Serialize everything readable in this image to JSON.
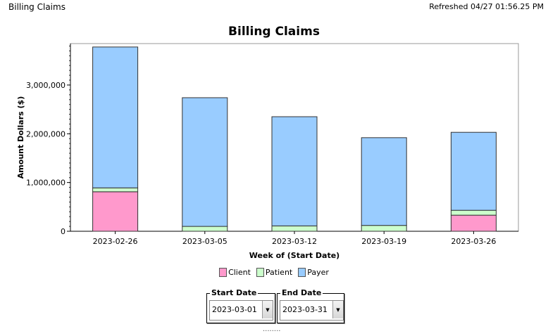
{
  "header": {
    "title": "Billing Claims",
    "refreshed": "Refreshed 04/27 01:56.25 PM"
  },
  "chart_data": {
    "type": "bar",
    "stacked": true,
    "title": "Billing Claims",
    "xlabel": "Week of (Start Date)",
    "ylabel": "Amount Dollars ($)",
    "categories": [
      "2023-02-26",
      "2023-03-05",
      "2023-03-12",
      "2023-03-19",
      "2023-03-26"
    ],
    "series": [
      {
        "name": "Client",
        "color": "#ff99cc",
        "values": [
          810000,
          0,
          0,
          0,
          330000
        ]
      },
      {
        "name": "Patient",
        "color": "#ccffcc",
        "values": [
          80000,
          100000,
          110000,
          120000,
          100000
        ]
      },
      {
        "name": "Payer",
        "color": "#99ccff",
        "values": [
          2890000,
          2640000,
          2240000,
          1800000,
          1600000
        ]
      }
    ],
    "ylim": [
      0,
      3850000
    ],
    "yticks": [
      0,
      1000000,
      2000000,
      3000000
    ],
    "ytick_labels": [
      "0",
      "1,000,000",
      "2,000,000",
      "3,000,000"
    ],
    "legend_position": "bottom"
  },
  "controls": {
    "start_date": {
      "label": "Start Date",
      "value": "2023-03-01"
    },
    "end_date": {
      "label": "End Date",
      "value": "2023-03-31"
    },
    "dropdown_icon": "chevron-down-icon",
    "resize_handle": "........"
  }
}
